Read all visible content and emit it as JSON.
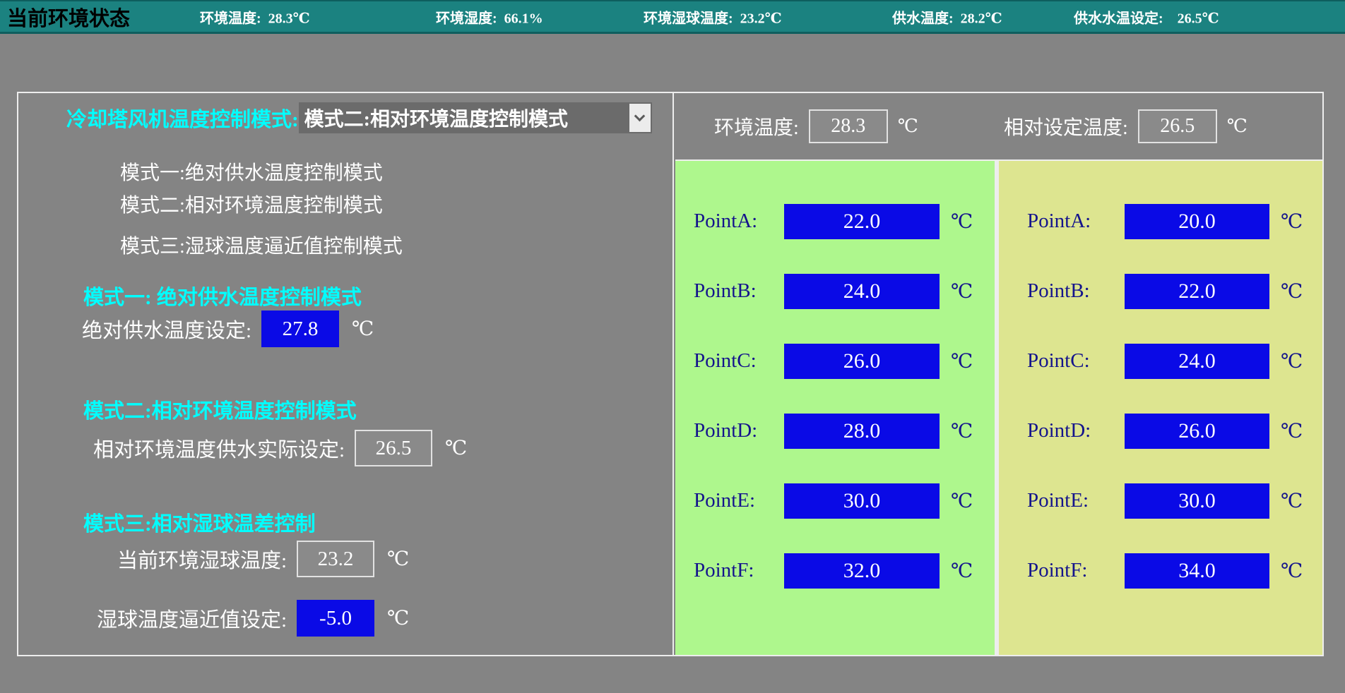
{
  "top_bar": {
    "title": "当前环境状态",
    "metrics": [
      {
        "label": "环境温度:",
        "value": "28.3℃"
      },
      {
        "label": "环境湿度:",
        "value": "66.1%"
      },
      {
        "label": "环境湿球温度:",
        "value": "23.2℃"
      },
      {
        "label": "供水温度:",
        "value": "28.2℃"
      },
      {
        "label": "供水水温设定:",
        "value": "26.5℃"
      }
    ]
  },
  "control_panel": {
    "select_label": "冷却塔风机温度控制模式:",
    "select_value": "模式二:相对环境温度控制模式",
    "mode_list": [
      "模式一:绝对供水温度控制模式",
      "模式二:相对环境温度控制模式",
      "模式三:湿球温度逼近值控制模式"
    ],
    "mode1_heading": "模式一: 绝对供水温度控制模式",
    "mode1_field_label": "绝对供水温度设定:",
    "mode1_value": "27.8",
    "mode2_heading": "模式二:相对环境温度控制模式",
    "mode2_field_label": "相对环境温度供水实际设定:",
    "mode2_value": "26.5",
    "mode3_heading": "模式三:相对湿球温差控制",
    "mode3_wetbulb_label": "当前环境湿球温度:",
    "mode3_wetbulb_value": "23.2",
    "mode3_approach_label": "湿球温度逼近值设定:",
    "mode3_approach_value": "-5.0",
    "unit": "℃"
  },
  "status_header": {
    "ambient_label": "环境温度:",
    "ambient_value": "28.3",
    "relative_label": "相对设定温度:",
    "relative_value": "26.5",
    "unit": "℃"
  },
  "point_table_left": {
    "rows": [
      {
        "label": "PointA:",
        "value": "22.0",
        "unit": "℃"
      },
      {
        "label": "PointB:",
        "value": "24.0",
        "unit": "℃"
      },
      {
        "label": "PointC:",
        "value": "26.0",
        "unit": "℃"
      },
      {
        "label": "PointD:",
        "value": "28.0",
        "unit": "℃"
      },
      {
        "label": "PointE:",
        "value": "30.0",
        "unit": "℃"
      },
      {
        "label": "PointF:",
        "value": "32.0",
        "unit": "℃"
      }
    ]
  },
  "point_table_right": {
    "rows": [
      {
        "label": "PointA:",
        "value": "20.0",
        "unit": "℃"
      },
      {
        "label": "PointB:",
        "value": "22.0",
        "unit": "℃"
      },
      {
        "label": "PointC:",
        "value": "24.0",
        "unit": "℃"
      },
      {
        "label": "PointD:",
        "value": "26.0",
        "unit": "℃"
      },
      {
        "label": "PointE:",
        "value": "30.0",
        "unit": "℃"
      },
      {
        "label": "PointF:",
        "value": "34.0",
        "unit": "℃"
      }
    ]
  },
  "colors": {
    "topbar_teal": "#1b8280",
    "background_gray": "#848484",
    "accent_cyan": "#00ffff",
    "setpoint_blue": "#0a0ae6",
    "table_green": "#aef78d",
    "table_yellow": "#dde590",
    "table_text_navy": "#14148c",
    "border_white": "#ededed"
  }
}
